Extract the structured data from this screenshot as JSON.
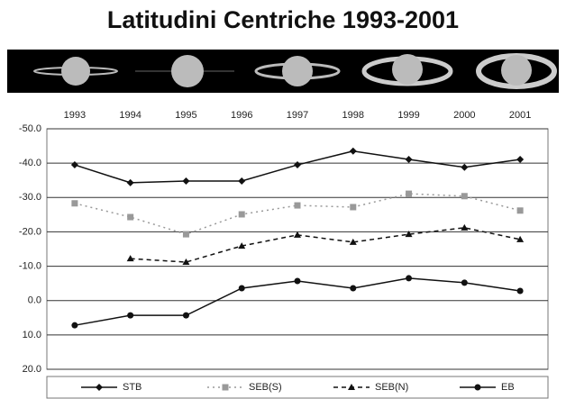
{
  "chart_data": {
    "type": "line",
    "title": "Latitudini Centriche 1993-2001",
    "categories": [
      "1993",
      "1994",
      "1995",
      "1996",
      "1997",
      "1998",
      "1999",
      "2000",
      "2001"
    ],
    "ylim": [
      -50,
      20
    ],
    "y_reversed": true,
    "grid": true,
    "yticks": [
      {
        "value": -50,
        "label": "-50.0"
      },
      {
        "value": -40,
        "label": "-40.0"
      },
      {
        "value": -30,
        "label": "-30.0"
      },
      {
        "value": -20,
        "label": "-20.0"
      },
      {
        "value": -10,
        "label": "-10.0"
      },
      {
        "value": 0,
        "label": "0.0"
      },
      {
        "value": 10,
        "label": "10.0"
      },
      {
        "value": 20,
        "label": "20.0"
      }
    ],
    "series": [
      {
        "name": "STB",
        "color": "#111111",
        "dash": "solid",
        "marker": "diamond",
        "values": [
          -39.5,
          -34.3,
          -34.8,
          -34.8,
          -39.5,
          -43.5,
          -41.1,
          -38.8,
          -41.1
        ]
      },
      {
        "name": "SEB(S)",
        "color": "#999999",
        "dash": "dotted",
        "marker": "square",
        "values": [
          -28.3,
          -24.3,
          -19.3,
          -25.1,
          -27.7,
          -27.2,
          -31.1,
          -30.4,
          -26.2
        ]
      },
      {
        "name": "SEB(N)",
        "color": "#111111",
        "dash": "dashed",
        "marker": "triangle",
        "values": [
          null,
          -12.2,
          -11.2,
          -15.9,
          -19.1,
          -17.0,
          -19.3,
          -21.2,
          -17.8
        ]
      },
      {
        "name": "EB",
        "color": "#111111",
        "dash": "solid",
        "marker": "circle",
        "values": [
          7.2,
          4.3,
          4.3,
          -3.6,
          -5.7,
          -3.6,
          -6.5,
          -5.2,
          -2.8
        ]
      }
    ]
  }
}
